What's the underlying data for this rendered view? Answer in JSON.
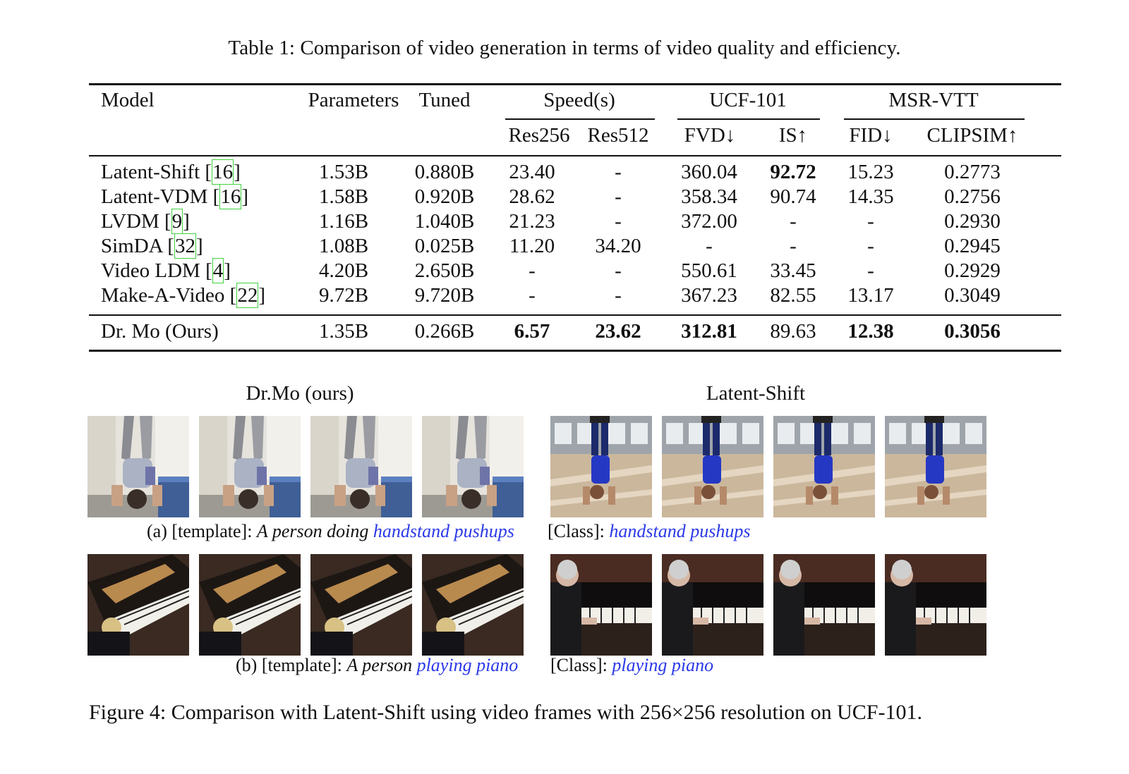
{
  "table": {
    "caption": "Table 1: Comparison of video generation in terms of video quality and efficiency.",
    "headers": {
      "model": "Model",
      "parameters": "Parameters",
      "tuned": "Tuned",
      "speed": "Speed(s)",
      "ucf": "UCF-101",
      "msr": "MSR-VTT",
      "res256": "Res256",
      "res512": "Res512",
      "fvd": "FVD↓",
      "is": "IS↑",
      "fid": "FID↓",
      "clipsim": "CLIPSIM↑"
    },
    "rows": [
      {
        "model": "Latent-Shift",
        "ref": "16",
        "params": "1.53B",
        "tuned": "0.880B",
        "res256": "23.40",
        "res512": "-",
        "fvd": "360.04",
        "is": "92.72",
        "fid": "15.23",
        "clipsim": "0.2773"
      },
      {
        "model": "Latent-VDM",
        "ref": "16",
        "params": "1.58B",
        "tuned": "0.920B",
        "res256": "28.62",
        "res512": "-",
        "fvd": "358.34",
        "is": "90.74",
        "fid": "14.35",
        "clipsim": "0.2756"
      },
      {
        "model": "LVDM",
        "ref": "9",
        "params": "1.16B",
        "tuned": "1.040B",
        "res256": "21.23",
        "res512": "-",
        "fvd": "372.00",
        "is": "-",
        "fid": "-",
        "clipsim": "0.2930"
      },
      {
        "model": "SimDA",
        "ref": "32",
        "params": "1.08B",
        "tuned": "0.025B",
        "res256": "11.20",
        "res512": "34.20",
        "fvd": "-",
        "is": "-",
        "fid": "-",
        "clipsim": "0.2945"
      },
      {
        "model": "Video LDM",
        "ref": "4",
        "params": "4.20B",
        "tuned": "2.650B",
        "res256": "-",
        "res512": "-",
        "fvd": "550.61",
        "is": "33.45",
        "fid": "-",
        "clipsim": "0.2929"
      },
      {
        "model": "Make-A-Video",
        "ref": "22",
        "params": "9.72B",
        "tuned": "9.720B",
        "res256": "-",
        "res512": "-",
        "fvd": "367.23",
        "is": "82.55",
        "fid": "13.17",
        "clipsim": "0.3049"
      }
    ],
    "ours": {
      "model": "Dr. Mo (Ours)",
      "params": "1.35B",
      "tuned": "0.266B",
      "res256": "6.57",
      "res512": "23.62",
      "fvd": "312.81",
      "is": "89.63",
      "fid": "12.38",
      "clipsim": "0.3056"
    }
  },
  "figure": {
    "left_title": "Dr.Mo (ours)",
    "right_title": "Latent-Shift",
    "row_a": {
      "left_prefix": "(a) [template]: ",
      "left_italic": "A person doing ",
      "left_blue": "handstand pushups",
      "right_prefix": "[Class]: ",
      "right_blue": "handstand pushups"
    },
    "row_b": {
      "left_prefix": "(b) [template]: ",
      "left_italic": "A person ",
      "left_blue": "playing piano",
      "right_prefix": "[Class]: ",
      "right_blue": "playing piano"
    },
    "caption": "Figure 4:  Comparison with Latent-Shift using video frames with 256×256 resolution on UCF-101.",
    "link_color": "#2a38e8",
    "citation_box_color": "#3fd23f"
  }
}
